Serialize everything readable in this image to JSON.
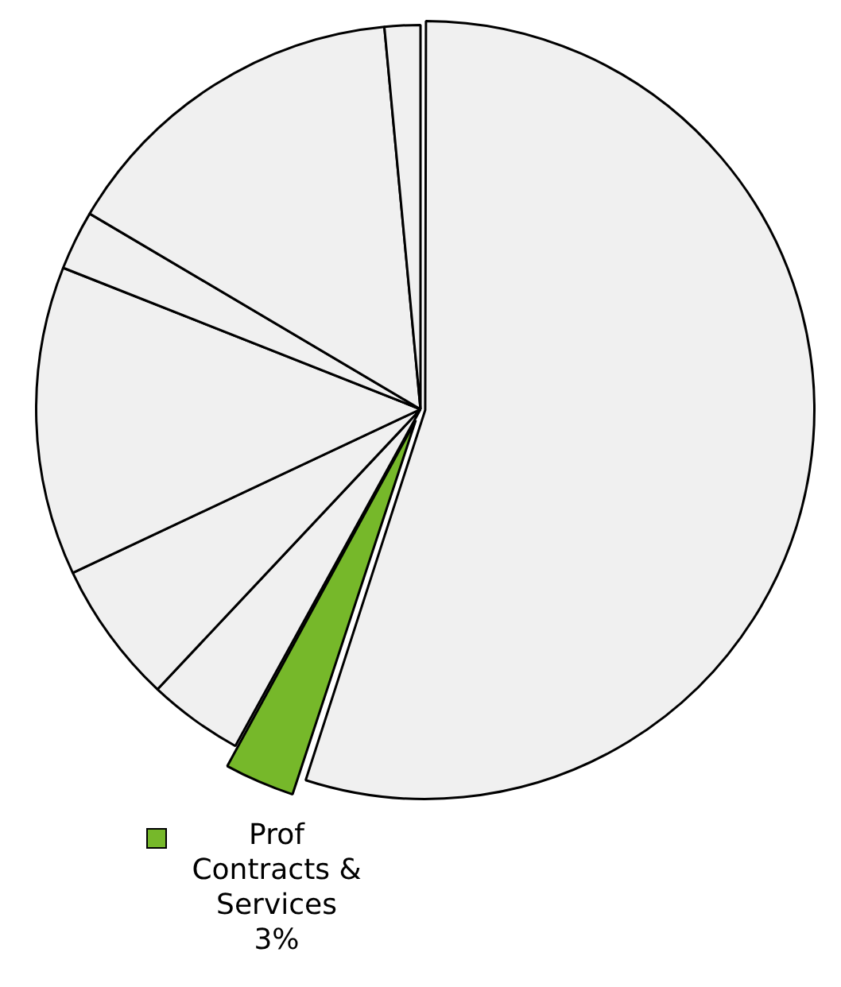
{
  "chart_data": {
    "type": "pie",
    "categories": [
      null,
      "Prof Contracts & Services",
      null,
      null,
      null,
      null,
      null,
      null
    ],
    "values": [
      55,
      3,
      4,
      6,
      13,
      2.5,
      15,
      1.5
    ],
    "value_labels": [
      null,
      "3%",
      null,
      null,
      null,
      null,
      null,
      null
    ],
    "colors": [
      "#f0f0f0",
      "#76b82a",
      "#f0f0f0",
      "#f0f0f0",
      "#f0f0f0",
      "#f0f0f0",
      "#f0f0f0",
      "#f0f0f0"
    ]
  }
}
